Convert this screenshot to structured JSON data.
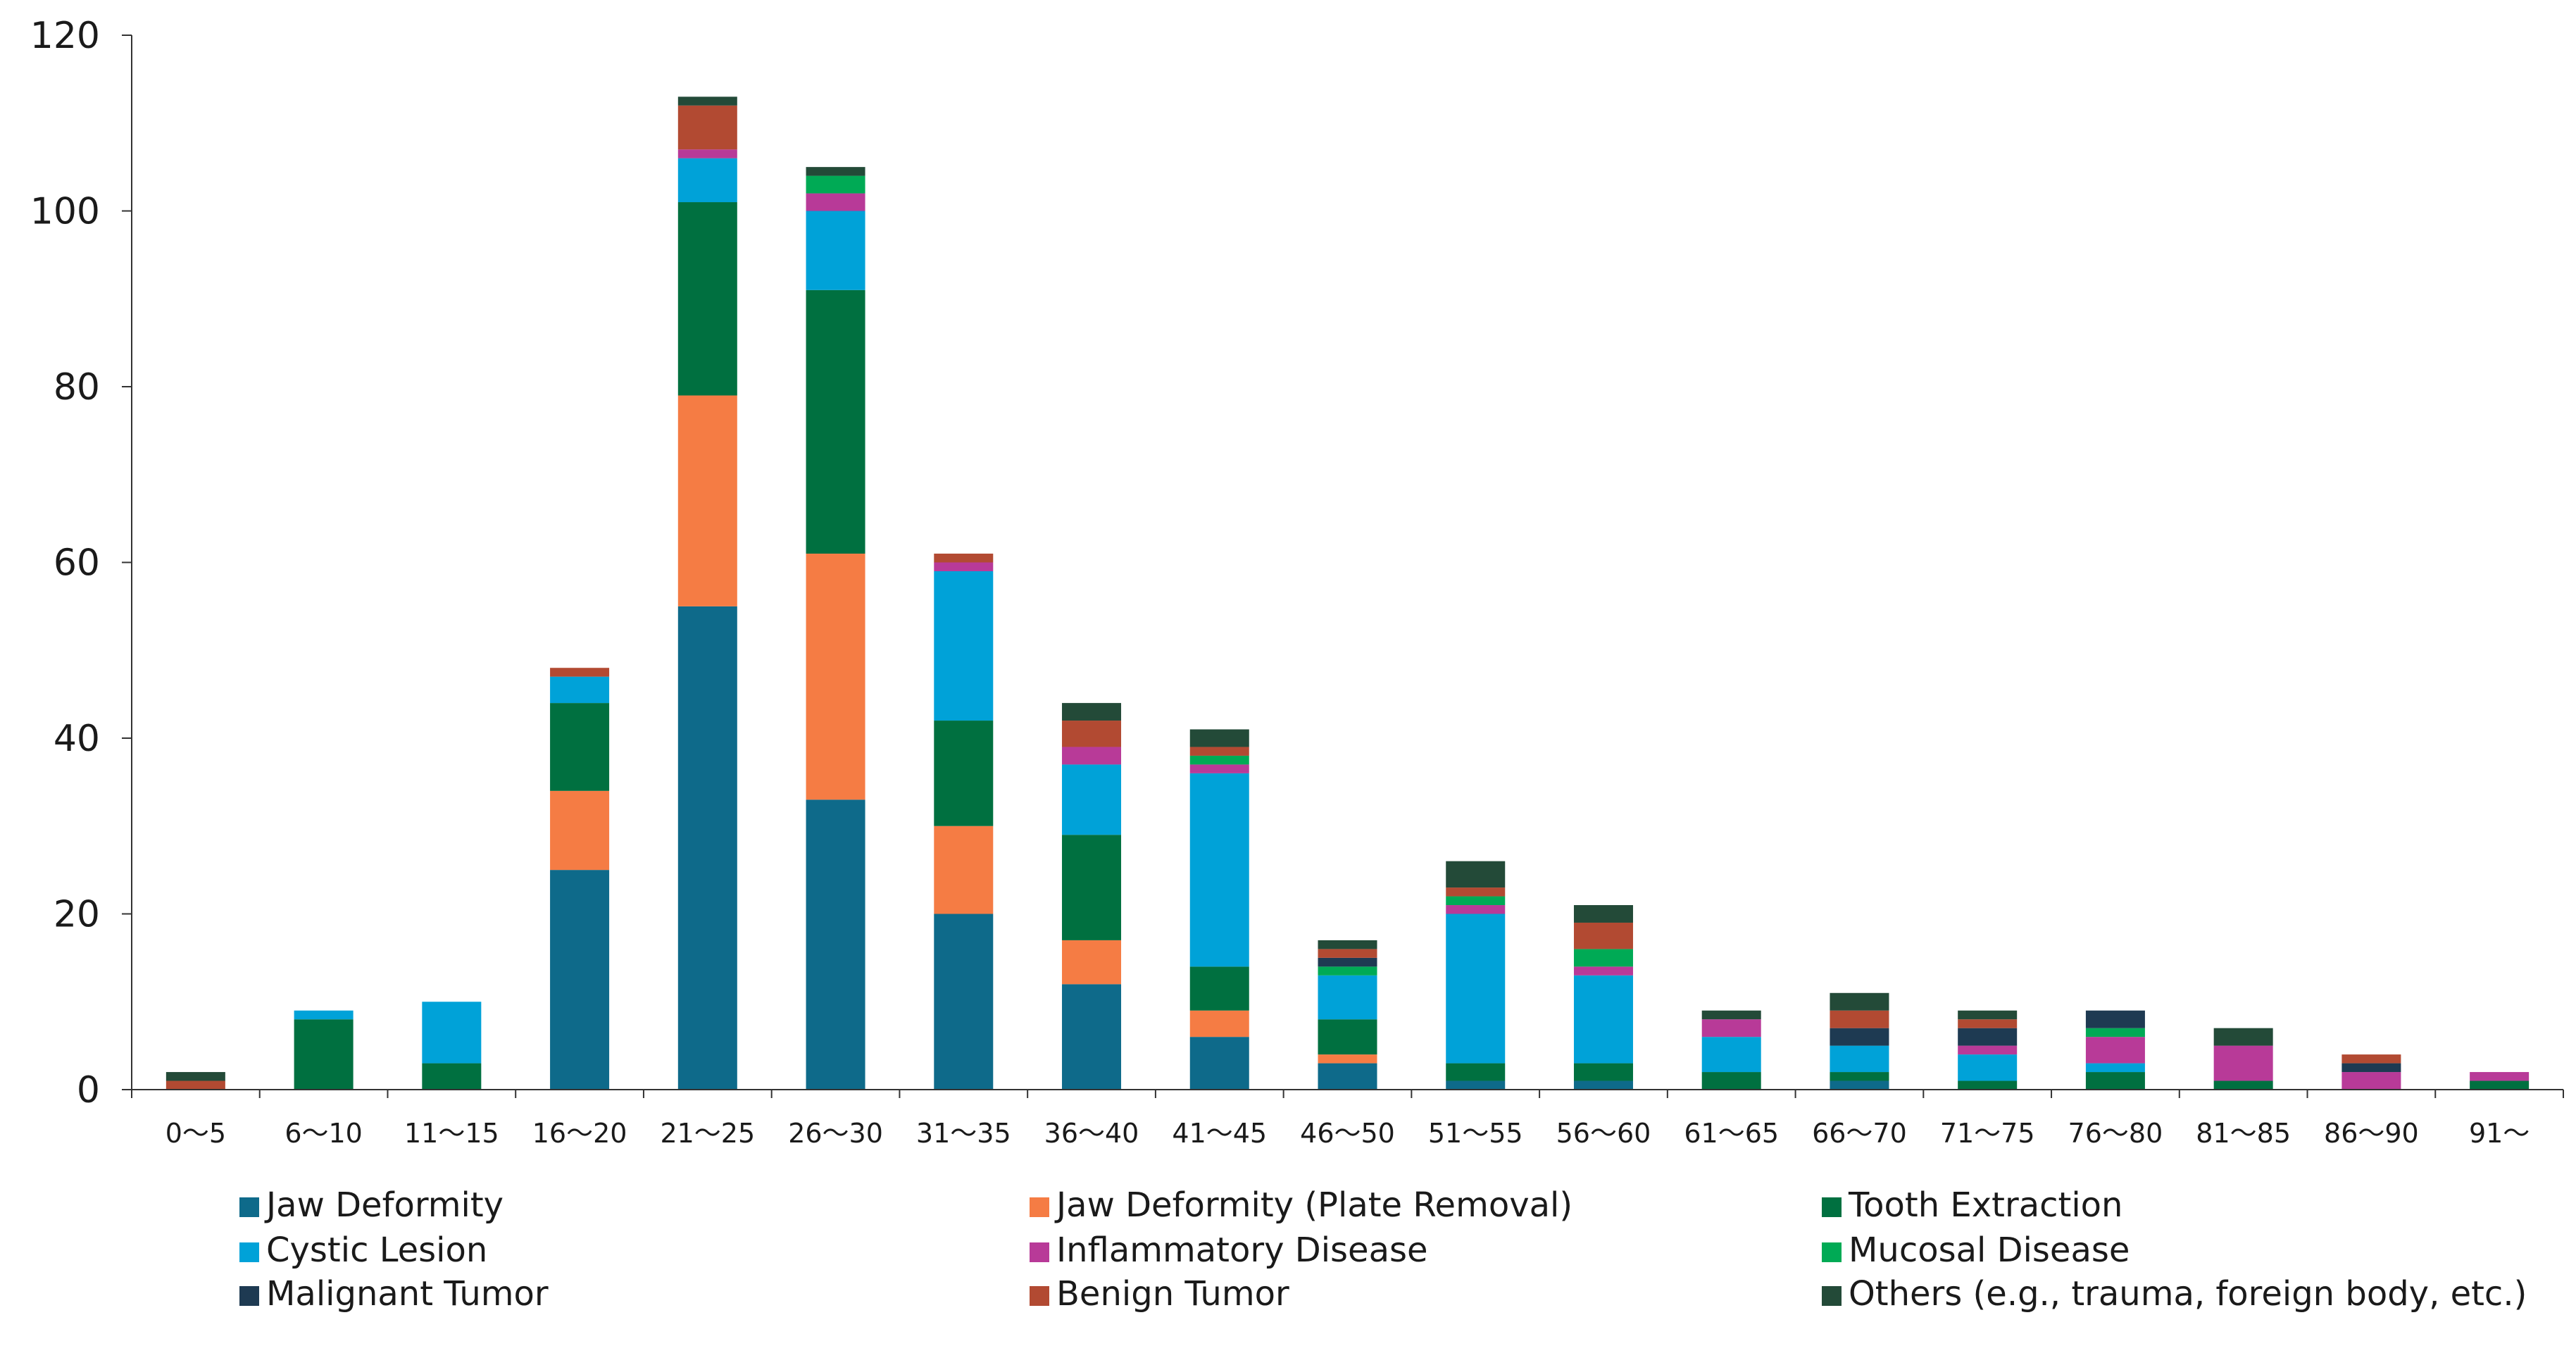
{
  "chart_data": {
    "type": "bar",
    "stacked": true,
    "title": "",
    "xlabel": "",
    "ylabel": "",
    "ylim": [
      0,
      120
    ],
    "yticks": [
      0,
      20,
      40,
      60,
      80,
      100,
      120
    ],
    "grid": false,
    "legend_position": "bottom",
    "categories": [
      "0～5",
      "6～10",
      "11～15",
      "16～20",
      "21～25",
      "26～30",
      "31～35",
      "36～40",
      "41～45",
      "46～50",
      "51～55",
      "56～60",
      "61～65",
      "66～70",
      "71～75",
      "76～80",
      "81～85",
      "86～90",
      "91～"
    ],
    "series": [
      {
        "name": "Jaw Deformity",
        "color": "#0e6a8a",
        "values": [
          0,
          0,
          0,
          25,
          55,
          33,
          20,
          12,
          6,
          3,
          1,
          1,
          0,
          1,
          0,
          0,
          0,
          0,
          0
        ]
      },
      {
        "name": "Jaw Deformity (Plate Removal)",
        "color": "#f57c44",
        "values": [
          0,
          0,
          0,
          9,
          24,
          28,
          10,
          5,
          3,
          1,
          0,
          0,
          0,
          0,
          0,
          0,
          0,
          0,
          0
        ]
      },
      {
        "name": "Tooth Extraction",
        "color": "#007040",
        "values": [
          0,
          8,
          3,
          10,
          22,
          30,
          12,
          12,
          5,
          4,
          2,
          2,
          2,
          1,
          1,
          2,
          1,
          0,
          1
        ]
      },
      {
        "name": "Cystic Lesion",
        "color": "#00a2d8",
        "values": [
          0,
          1,
          7,
          3,
          5,
          9,
          17,
          8,
          22,
          5,
          17,
          10,
          4,
          3,
          3,
          1,
          0,
          0,
          0
        ]
      },
      {
        "name": "Inflammatory Disease",
        "color": "#b83a98",
        "values": [
          0,
          0,
          0,
          0,
          1,
          2,
          1,
          2,
          1,
          0,
          1,
          1,
          2,
          0,
          1,
          3,
          4,
          2,
          1
        ]
      },
      {
        "name": "Mucosal Disease",
        "color": "#00aa55",
        "values": [
          0,
          0,
          0,
          0,
          0,
          2,
          0,
          0,
          1,
          1,
          1,
          2,
          0,
          0,
          0,
          1,
          0,
          0,
          0
        ]
      },
      {
        "name": "Malignant Tumor",
        "color": "#1e3a52",
        "values": [
          0,
          0,
          0,
          0,
          0,
          0,
          0,
          0,
          0,
          1,
          0,
          0,
          0,
          2,
          2,
          2,
          0,
          1,
          0
        ]
      },
      {
        "name": "Benign Tumor",
        "color": "#b24a32",
        "values": [
          1,
          0,
          0,
          1,
          5,
          0,
          1,
          3,
          1,
          1,
          1,
          3,
          0,
          2,
          1,
          0,
          0,
          1,
          0
        ]
      },
      {
        "name": "Others (e.g., trauma, foreign body, etc.)",
        "color": "#234a38",
        "values": [
          1,
          0,
          0,
          0,
          1,
          1,
          0,
          2,
          2,
          1,
          3,
          2,
          1,
          2,
          1,
          0,
          2,
          0,
          0
        ]
      }
    ]
  }
}
